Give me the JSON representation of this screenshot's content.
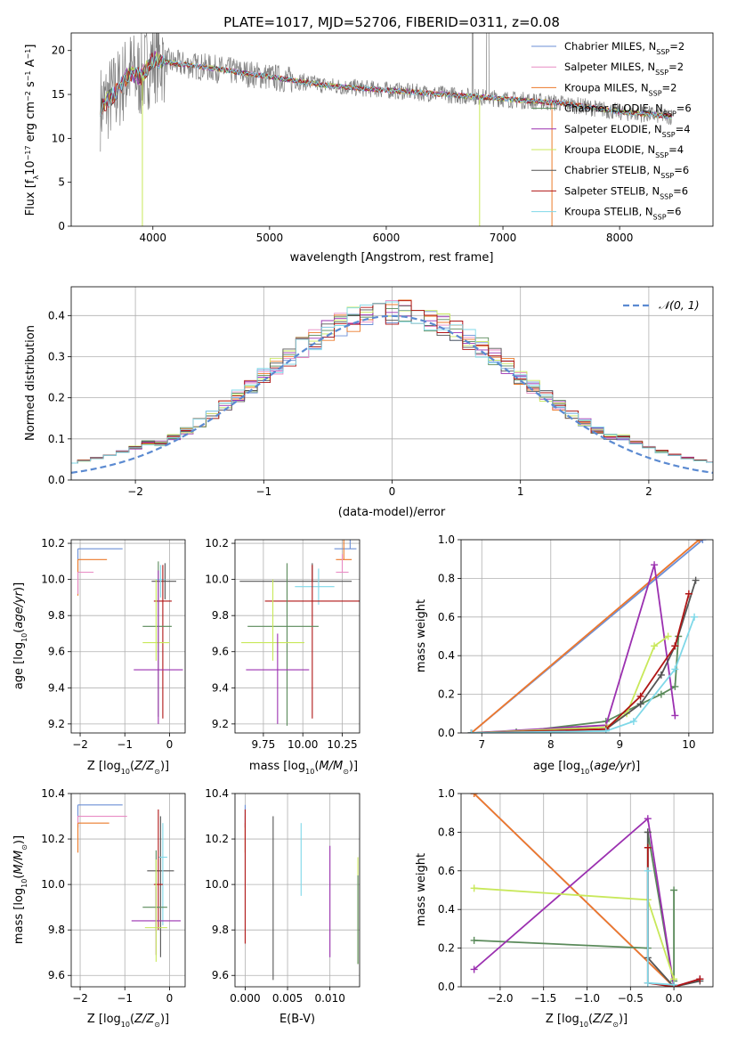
{
  "figure_title": "PLATE=1017, MJD=52706, FIBERID=0311, z=0.08",
  "colors": {
    "Chabrier MILES": "#6b8fd6",
    "Salpeter MILES": "#e88bc4",
    "Kroupa MILES": "#ec7a2a",
    "Chabrier ELODIE": "#5a8a5a",
    "Salpeter ELODIE": "#9b30b0",
    "Kroupa ELODIE": "#c8e85a",
    "Chabrier STELIB": "#555555",
    "Salpeter STELIB": "#b01515",
    "Kroupa STELIB": "#7fd8e8"
  },
  "chart_data": [
    {
      "id": "spectrum",
      "type": "line",
      "title": "PLATE=1017, MJD=52706, FIBERID=0311, z=0.08",
      "xlabel": "wavelength [Angstrom, rest frame]",
      "ylabel": "Flux [f_λ10^-17 erg cm^-2 s^-1 A^-1]",
      "xlim": [
        3300,
        8800
      ],
      "ylim": [
        0,
        22
      ],
      "xticks": [
        4000,
        5000,
        6000,
        7000,
        8000
      ],
      "yticks": [
        0,
        5,
        10,
        15,
        20
      ],
      "legend_position": "upper right",
      "legend": [
        {
          "label": "Chabrier MILES, N",
          "sub": "SSP",
          "tail": "=2"
        },
        {
          "label": "Salpeter MILES, N",
          "sub": "SSP",
          "tail": "=2"
        },
        {
          "label": "Kroupa MILES, N",
          "sub": "SSP",
          "tail": "=2"
        },
        {
          "label": "Chabrier ELODIE, N",
          "sub": "SSP",
          "tail": "=6"
        },
        {
          "label": "Salpeter ELODIE, N",
          "sub": "SSP",
          "tail": "=4"
        },
        {
          "label": "Kroupa ELODIE, N",
          "sub": "SSP",
          "tail": "=4"
        },
        {
          "label": "Chabrier STELIB, N",
          "sub": "SSP",
          "tail": "=6"
        },
        {
          "label": "Salpeter STELIB, N",
          "sub": "SSP",
          "tail": "=6"
        },
        {
          "label": "Kroupa STELIB, N",
          "sub": "SSP",
          "tail": "=6"
        }
      ],
      "continuum_points": [
        [
          3550,
          13.5
        ],
        [
          3700,
          15.5
        ],
        [
          3800,
          17.5
        ],
        [
          3900,
          17.0
        ],
        [
          4000,
          19.0
        ],
        [
          4200,
          18.5
        ],
        [
          4500,
          18.0
        ],
        [
          5000,
          17.0
        ],
        [
          5500,
          16.0
        ],
        [
          6000,
          15.5
        ],
        [
          6500,
          15.0
        ],
        [
          7000,
          14.5
        ],
        [
          7500,
          14.0
        ],
        [
          8000,
          13.0
        ],
        [
          8450,
          12.5
        ]
      ]
    },
    {
      "id": "residuals",
      "type": "histogram",
      "xlabel": "(data-model)/error",
      "ylabel": "Normed distribution",
      "xlim": [
        -2.5,
        2.5
      ],
      "ylim": [
        0,
        0.47
      ],
      "xticks": [
        -2,
        -1,
        0,
        1,
        2
      ],
      "yticks": [
        0.0,
        0.1,
        0.2,
        0.3,
        0.4
      ],
      "legend": "𝒩(0, 1)",
      "bin_width": 0.1
    },
    {
      "id": "age_vs_Z",
      "type": "errorbar",
      "xlabel": "Z [log10(Z/Z⊙)]",
      "ylabel": "age  [log10(age/yr)]",
      "xlim": [
        -2.2,
        0.35
      ],
      "ylim": [
        9.15,
        10.22
      ],
      "xticks": [
        -2,
        -1,
        0
      ],
      "yticks": [
        9.2,
        9.4,
        9.6,
        9.8,
        10.0,
        10.2
      ],
      "points": [
        {
          "model": "Chabrier MILES",
          "x": -2.05,
          "xerr": [
            0,
            1.0
          ],
          "y": 10.17,
          "yerr": [
            0.25,
            0
          ]
        },
        {
          "model": "Kroupa MILES",
          "x": -2.05,
          "xerr": [
            0,
            0.65
          ],
          "y": 10.11,
          "yerr": [
            0.2,
            0
          ]
        },
        {
          "model": "Salpeter MILES",
          "x": -2.05,
          "xerr": [
            0,
            0.35
          ],
          "y": 10.04,
          "yerr": [
            0.12,
            0
          ]
        },
        {
          "model": "Chabrier STELIB",
          "x": -0.1,
          "xerr": [
            0.3,
            0.25
          ],
          "y": 9.99,
          "yerr": [
            0.1,
            0.1
          ]
        },
        {
          "model": "Kroupa STELIB",
          "x": -0.2,
          "xerr": [
            0.1,
            0.1
          ],
          "y": 10.0,
          "yerr": [
            0.1,
            0.08
          ]
        },
        {
          "model": "Salpeter STELIB",
          "x": -0.15,
          "xerr": [
            0.2,
            0.2
          ],
          "y": 9.88,
          "yerr": [
            0.65,
            0.2
          ]
        },
        {
          "model": "Chabrier ELODIE",
          "x": -0.25,
          "xerr": [
            0.35,
            0.3
          ],
          "y": 9.74,
          "yerr": [
            0.5,
            0.36
          ]
        },
        {
          "model": "Kroupa ELODIE",
          "x": -0.3,
          "xerr": [
            0.3,
            0.3
          ],
          "y": 9.65,
          "yerr": [
            0.1,
            0.35
          ]
        },
        {
          "model": "Salpeter ELODIE",
          "x": -0.25,
          "xerr": [
            0.55,
            0.55
          ],
          "y": 9.5,
          "yerr": [
            0.3,
            0.55
          ]
        }
      ]
    },
    {
      "id": "age_vs_mass",
      "type": "errorbar",
      "xlabel": "mass [log10(M/M⊙)]",
      "xlim": [
        9.57,
        10.36
      ],
      "ylim": [
        9.15,
        10.22
      ],
      "xticks": [
        9.75,
        10.0,
        10.25
      ],
      "xticklabels": [
        "9.75",
        "10.00",
        "10.25"
      ],
      "yticks": [
        9.2,
        9.4,
        9.6,
        9.8,
        10.0,
        10.2
      ],
      "points": [
        {
          "model": "Chabrier MILES",
          "x": 10.3,
          "xerr": [
            0.1,
            0.04
          ],
          "y": 10.17,
          "yerr": [
            0,
            0.19
          ]
        },
        {
          "model": "Kroupa MILES",
          "x": 10.26,
          "xerr": [
            0.05,
            0.05
          ],
          "y": 10.11,
          "yerr": [
            0,
            0.15
          ]
        },
        {
          "model": "Salpeter MILES",
          "x": 10.25,
          "xerr": [
            0.04,
            0.04
          ],
          "y": 10.04,
          "yerr": [
            0,
            0.1
          ]
        },
        {
          "model": "Chabrier STELIB",
          "x": 10.06,
          "xerr": [
            0.46,
            0.25
          ],
          "y": 9.99,
          "yerr": [
            0,
            0.1
          ]
        },
        {
          "model": "Kroupa STELIB",
          "x": 10.1,
          "xerr": [
            0.15,
            0.1
          ],
          "y": 9.96,
          "yerr": [
            0.1,
            0.1
          ]
        },
        {
          "model": "Salpeter STELIB",
          "x": 10.06,
          "xerr": [
            0.3,
            0.3
          ],
          "y": 9.88,
          "yerr": [
            0.65,
            0.2
          ]
        },
        {
          "model": "Chabrier ELODIE",
          "x": 9.9,
          "xerr": [
            0.25,
            0.2
          ],
          "y": 9.74,
          "yerr": [
            0.55,
            0.35
          ]
        },
        {
          "model": "Kroupa ELODIE",
          "x": 9.81,
          "xerr": [
            0.2,
            0.2
          ],
          "y": 9.65,
          "yerr": [
            0.1,
            0.35
          ]
        },
        {
          "model": "Salpeter ELODIE",
          "x": 9.84,
          "xerr": [
            0.2,
            0.2
          ],
          "y": 9.5,
          "yerr": [
            0.3,
            0.2
          ]
        }
      ]
    },
    {
      "id": "massweight_vs_age",
      "type": "line",
      "xlabel": "age  [log10(age/yr)]",
      "ylabel": "mass weight",
      "xlim": [
        6.7,
        10.35
      ],
      "ylim": [
        0,
        1.0
      ],
      "xticks": [
        7,
        8,
        9,
        10
      ],
      "yticks": [
        0.0,
        0.2,
        0.4,
        0.6,
        0.8,
        1.0
      ],
      "series": [
        {
          "model": "Chabrier MILES",
          "x": [
            6.85,
            10.2
          ],
          "y": [
            0.0,
            1.0
          ]
        },
        {
          "model": "Salpeter MILES",
          "x": [
            6.85,
            10.15
          ],
          "y": [
            0.0,
            1.0
          ]
        },
        {
          "model": "Kroupa MILES",
          "x": [
            6.85,
            10.15
          ],
          "y": [
            0.0,
            1.0
          ]
        },
        {
          "model": "Chabrier ELODIE",
          "x": [
            6.85,
            7.5,
            8.8,
            9.3,
            9.6,
            9.8,
            9.85
          ],
          "y": [
            0.0,
            0.005,
            0.06,
            0.15,
            0.2,
            0.24,
            0.5
          ]
        },
        {
          "model": "Salpeter ELODIE",
          "x": [
            6.85,
            8.8,
            9.5,
            9.8
          ],
          "y": [
            0.0,
            0.04,
            0.87,
            0.09
          ]
        },
        {
          "model": "Kroupa ELODIE",
          "x": [
            6.85,
            8.8,
            9.1,
            9.5,
            9.7
          ],
          "y": [
            0.0,
            0.03,
            0.1,
            0.45,
            0.5
          ]
        },
        {
          "model": "Chabrier STELIB",
          "x": [
            6.85,
            8.8,
            9.3,
            9.6,
            9.8,
            10.1
          ],
          "y": [
            0.0,
            0.02,
            0.15,
            0.3,
            0.45,
            0.79
          ]
        },
        {
          "model": "Salpeter STELIB",
          "x": [
            6.85,
            8.8,
            9.3,
            9.8,
            10.0
          ],
          "y": [
            0.0,
            0.02,
            0.19,
            0.45,
            0.72
          ]
        },
        {
          "model": "Kroupa STELIB",
          "x": [
            6.85,
            8.8,
            9.2,
            9.8,
            10.08
          ],
          "y": [
            0.0,
            0.01,
            0.06,
            0.33,
            0.6
          ]
        }
      ]
    },
    {
      "id": "mass_vs_Z",
      "type": "errorbar",
      "xlabel": "Z [log10(Z/Z⊙)]",
      "ylabel": "mass [log10(M/M⊙)]",
      "xlim": [
        -2.2,
        0.35
      ],
      "ylim": [
        9.55,
        10.4
      ],
      "xticks": [
        -2,
        -1,
        0
      ],
      "yticks": [
        9.6,
        9.8,
        10.0,
        10.2,
        10.4
      ],
      "points": [
        {
          "model": "Chabrier MILES",
          "x": -2.05,
          "xerr": [
            0,
            1.0
          ],
          "y": 10.35,
          "yerr": [
            0.1,
            0
          ]
        },
        {
          "model": "Salpeter MILES",
          "x": -2.05,
          "xerr": [
            0,
            1.1
          ],
          "y": 10.3,
          "yerr": [
            0.05,
            0
          ]
        },
        {
          "model": "Kroupa MILES",
          "x": -2.05,
          "xerr": [
            0,
            0.7
          ],
          "y": 10.27,
          "yerr": [
            0.13,
            0
          ]
        },
        {
          "model": "Chabrier STELIB",
          "x": -0.2,
          "xerr": [
            0.3,
            0.3
          ],
          "y": 10.06,
          "yerr": [
            0.38,
            0.24
          ]
        },
        {
          "model": "Kroupa STELIB",
          "x": -0.15,
          "xerr": [
            0.1,
            0.1
          ],
          "y": 10.12,
          "yerr": [
            0.3,
            0.15
          ]
        },
        {
          "model": "Salpeter STELIB",
          "x": -0.25,
          "xerr": [
            0.1,
            0.1
          ],
          "y": 10.0,
          "yerr": [
            0.2,
            0.33
          ]
        },
        {
          "model": "Chabrier ELODIE",
          "x": -0.3,
          "xerr": [
            0.3,
            0.25
          ],
          "y": 9.9,
          "yerr": [
            0.1,
            0.25
          ]
        },
        {
          "model": "Salpeter ELODIE",
          "x": -0.3,
          "xerr": [
            0.55,
            0.55
          ],
          "y": 9.84,
          "yerr": [
            0.15,
            0.15
          ]
        },
        {
          "model": "Kroupa ELODIE",
          "x": -0.3,
          "xerr": [
            0.25,
            0.25
          ],
          "y": 9.81,
          "yerr": [
            0.15,
            0.3
          ]
        }
      ]
    },
    {
      "id": "mass_vs_ebv",
      "type": "errorbar",
      "xlabel": "E(B-V)",
      "xlim": [
        -0.0012,
        0.0135
      ],
      "ylim": [
        9.55,
        10.4
      ],
      "xticks": [
        0.0,
        0.005,
        0.01
      ],
      "xticklabels": [
        "0.000",
        "0.005",
        "0.010"
      ],
      "yticks": [
        9.6,
        9.8,
        10.0,
        10.2,
        10.4
      ],
      "points": [
        {
          "model": "Chabrier MILES",
          "x": 0.0,
          "xerr": [
            0,
            0
          ],
          "y": 10.35,
          "yerr": [
            0.1,
            0
          ]
        },
        {
          "model": "Salpeter MILES",
          "x": 0.0,
          "xerr": [
            0,
            0
          ],
          "y": 10.3,
          "yerr": [
            0.05,
            0
          ]
        },
        {
          "model": "Kroupa MILES",
          "x": 0.0,
          "xerr": [
            0,
            0
          ],
          "y": 10.27,
          "yerr": [
            0.13,
            0
          ]
        },
        {
          "model": "Salpeter STELIB",
          "x": 0.0,
          "xerr": [
            0,
            0
          ],
          "y": 10.03,
          "yerr": [
            0.29,
            0.3
          ]
        },
        {
          "model": "Chabrier STELIB",
          "x": 0.0033,
          "xerr": [
            0,
            0
          ],
          "y": 9.95,
          "yerr": [
            0.37,
            0.35
          ]
        },
        {
          "model": "Kroupa STELIB",
          "x": 0.0066,
          "xerr": [
            0,
            0
          ],
          "y": 10.12,
          "yerr": [
            0.17,
            0.15
          ]
        },
        {
          "model": "Salpeter ELODIE",
          "x": 0.01,
          "xerr": [
            0,
            0
          ],
          "y": 9.93,
          "yerr": [
            0.25,
            0.24
          ]
        },
        {
          "model": "Kroupa ELODIE",
          "x": 0.0133,
          "xerr": [
            0,
            0
          ],
          "y": 9.89,
          "yerr": [
            0.24,
            0.23
          ]
        },
        {
          "model": "Chabrier ELODIE",
          "x": 0.0133,
          "xerr": [
            0,
            0
          ],
          "y": 9.8,
          "yerr": [
            0.15,
            0.24
          ]
        }
      ]
    },
    {
      "id": "massweight_vs_Z",
      "type": "line",
      "xlabel": "Z [log10(Z/Z⊙)]",
      "ylabel": "mass weight",
      "xlim": [
        -2.45,
        0.45
      ],
      "ylim": [
        0,
        1.0
      ],
      "xticks": [
        -2.0,
        -1.5,
        -1.0,
        -0.5,
        0.0
      ],
      "xticklabels": [
        "−2.0",
        "−1.5",
        "−1.0",
        "−0.5",
        "0.0"
      ],
      "yticks": [
        0.0,
        0.2,
        0.4,
        0.6,
        0.8,
        1.0
      ],
      "series": [
        {
          "model": "Chabrier MILES",
          "x": [
            -2.3,
            0.0
          ],
          "y": [
            1.0,
            0.0
          ]
        },
        {
          "model": "Salpeter MILES",
          "x": [
            -2.3,
            0.0
          ],
          "y": [
            1.0,
            0.0
          ]
        },
        {
          "model": "Kroupa MILES",
          "x": [
            -2.3,
            0.0
          ],
          "y": [
            1.0,
            0.0
          ]
        },
        {
          "model": "Chabrier ELODIE",
          "x": [
            -2.3,
            -0.3,
            -0.3,
            0.0,
            0.0,
            0.0
          ],
          "y": [
            0.24,
            0.2,
            0.8,
            0.0,
            0.5,
            0.03
          ]
        },
        {
          "model": "Salpeter ELODIE",
          "x": [
            -2.3,
            -0.3,
            0.0,
            0.3
          ],
          "y": [
            0.09,
            0.87,
            0.0,
            0.04
          ]
        },
        {
          "model": "Kroupa ELODIE",
          "x": [
            -2.3,
            -0.3,
            0.0
          ],
          "y": [
            0.51,
            0.45,
            0.04
          ]
        },
        {
          "model": "Chabrier STELIB",
          "x": [
            -0.3,
            -0.3,
            0.0,
            0.3
          ],
          "y": [
            0.8,
            0.15,
            0.0,
            0.03
          ]
        },
        {
          "model": "Salpeter STELIB",
          "x": [
            -0.3,
            -0.3,
            0.0,
            0.3
          ],
          "y": [
            0.72,
            0.02,
            0.0,
            0.04
          ]
        },
        {
          "model": "Kroupa STELIB",
          "x": [
            -0.3,
            -0.3,
            0.0
          ],
          "y": [
            0.6,
            0.02,
            0.01
          ]
        }
      ]
    }
  ]
}
